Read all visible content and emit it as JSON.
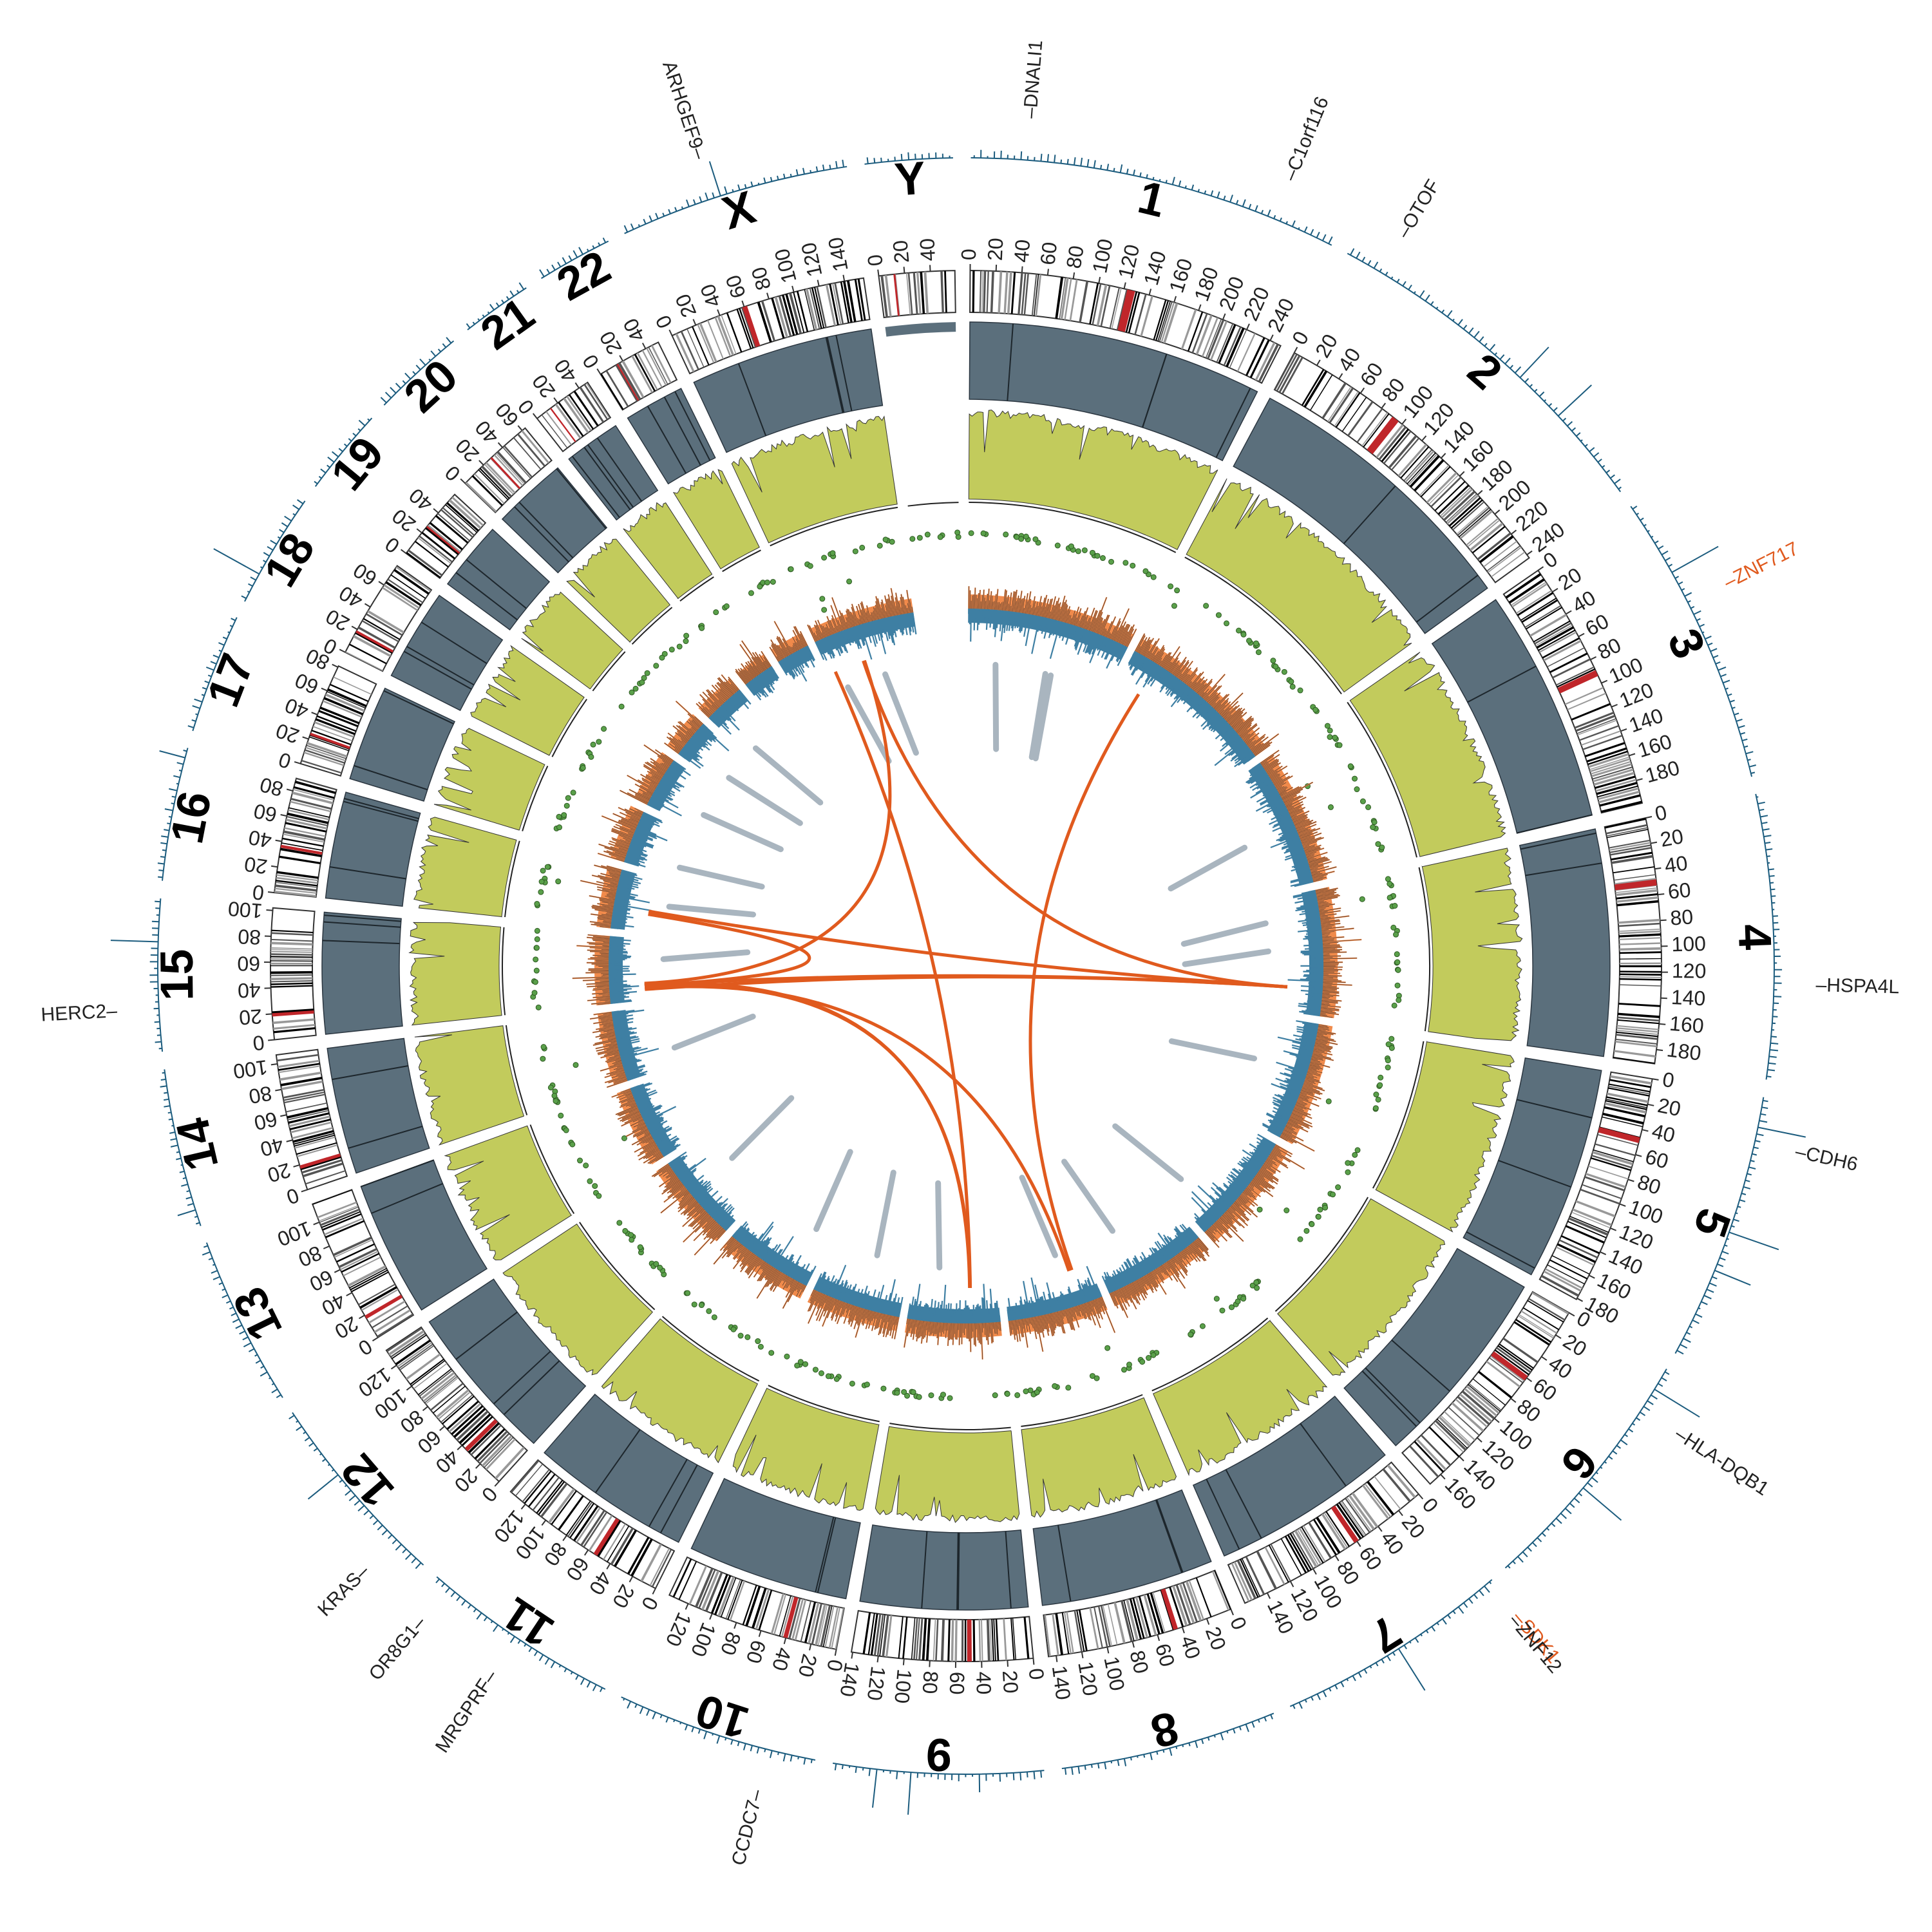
{
  "chart_data": {
    "type": "circos",
    "title": "",
    "chromosomes": [
      {
        "name": "1",
        "length": 249,
        "ticks": [
          0,
          20,
          40,
          60,
          80,
          100,
          120,
          140,
          160,
          180,
          200,
          220,
          240
        ],
        "centromere": 125
      },
      {
        "name": "2",
        "length": 243,
        "ticks": [
          0,
          20,
          40,
          60,
          80,
          100,
          120,
          140,
          160,
          180,
          200,
          220,
          240
        ],
        "centromere": 93
      },
      {
        "name": "3",
        "length": 198,
        "ticks": [
          0,
          20,
          40,
          60,
          80,
          100,
          120,
          140,
          160,
          180
        ],
        "centromere": 91
      },
      {
        "name": "4",
        "length": 191,
        "ticks": [
          0,
          20,
          40,
          60,
          80,
          100,
          120,
          140,
          160,
          180
        ],
        "centromere": 50
      },
      {
        "name": "5",
        "length": 181,
        "ticks": [
          0,
          20,
          40,
          60,
          80,
          100,
          120,
          140,
          160,
          180
        ],
        "centromere": 48
      },
      {
        "name": "6",
        "length": 171,
        "ticks": [
          0,
          20,
          40,
          60,
          80,
          100,
          120,
          140,
          160
        ],
        "centromere": 60
      },
      {
        "name": "7",
        "length": 159,
        "ticks": [
          0,
          20,
          40,
          60,
          80,
          100,
          120,
          140
        ],
        "centromere": 60
      },
      {
        "name": "8",
        "length": 146,
        "ticks": [
          0,
          20,
          40,
          60,
          80,
          100,
          120,
          140
        ],
        "centromere": 45
      },
      {
        "name": "9",
        "length": 141,
        "ticks": [
          0,
          20,
          40,
          60,
          80,
          100,
          120,
          140
        ],
        "centromere": 49
      },
      {
        "name": "10",
        "length": 136,
        "ticks": [
          0,
          20,
          40,
          60,
          80,
          100,
          120
        ],
        "centromere": 40
      },
      {
        "name": "11",
        "length": 135,
        "ticks": [
          0,
          20,
          40,
          60,
          80,
          100,
          120
        ],
        "centromere": 53
      },
      {
        "name": "12",
        "length": 134,
        "ticks": [
          0,
          20,
          40,
          60,
          80,
          100,
          120
        ],
        "centromere": 35
      },
      {
        "name": "13",
        "length": 115,
        "ticks": [
          0,
          20,
          40,
          60,
          80,
          100
        ],
        "centromere": 18
      },
      {
        "name": "14",
        "length": 107,
        "ticks": [
          0,
          20,
          40,
          60,
          80,
          100
        ],
        "centromere": 18
      },
      {
        "name": "15",
        "length": 102,
        "ticks": [
          0,
          20,
          40,
          60,
          80,
          100
        ],
        "centromere": 19
      },
      {
        "name": "16",
        "length": 90,
        "ticks": [
          0,
          20,
          40,
          60,
          80
        ],
        "centromere": 36
      },
      {
        "name": "17",
        "length": 81,
        "ticks": [
          0,
          20,
          40,
          60,
          80
        ],
        "centromere": 24
      },
      {
        "name": "18",
        "length": 78,
        "ticks": [
          0,
          20,
          40,
          60
        ],
        "centromere": 18
      },
      {
        "name": "19",
        "length": 59,
        "ticks": [
          0,
          20,
          40
        ],
        "centromere": 26
      },
      {
        "name": "20",
        "length": 63,
        "ticks": [
          0,
          20,
          40,
          60
        ],
        "centromere": 28
      },
      {
        "name": "21",
        "length": 48,
        "ticks": [
          0,
          20,
          40
        ],
        "centromere": 13
      },
      {
        "name": "22",
        "length": 51,
        "ticks": [
          0,
          20,
          40
        ],
        "centromere": 15
      },
      {
        "name": "X",
        "length": 155,
        "ticks": [
          0,
          20,
          40,
          60,
          80,
          100,
          120,
          140
        ],
        "centromere": 60
      },
      {
        "name": "Y",
        "length": 59,
        "ticks": [
          0,
          20,
          40
        ],
        "centromere": 12
      }
    ],
    "genes": [
      {
        "name": "DNALI1",
        "chr": "1",
        "pos": 38,
        "color": "#222222"
      },
      {
        "name": "C1orf116",
        "chr": "1",
        "pos": 207,
        "color": "#222222"
      },
      {
        "name": "OTOF",
        "chr": "2",
        "pos": 26,
        "color": "#222222"
      },
      {
        "name": "ZNF717",
        "chr": "3",
        "pos": 75,
        "color": "#e05a1e"
      },
      {
        "name": "HSPA4L",
        "chr": "4",
        "pos": 128,
        "color": "#222222"
      },
      {
        "name": "CDH6",
        "chr": "5",
        "pos": 31,
        "color": "#222222"
      },
      {
        "name": "HLA-DQB1",
        "chr": "6",
        "pos": 32,
        "color": "#222222"
      },
      {
        "name": "SDK1",
        "chr": "7",
        "pos": 3,
        "color": "#e05a1e"
      },
      {
        "name": "ZNF12",
        "chr": "7",
        "pos": 6,
        "color": "#222222"
      },
      {
        "name": "CCDC7",
        "chr": "10",
        "pos": 32,
        "color": "#222222"
      },
      {
        "name": "MRGPRF",
        "chr": "11",
        "pos": 68,
        "color": "#222222"
      },
      {
        "name": "OR8G1",
        "chr": "11",
        "pos": 124,
        "color": "#222222"
      },
      {
        "name": "KRAS",
        "chr": "12",
        "pos": 25,
        "color": "#222222"
      },
      {
        "name": "HERC2",
        "chr": "15",
        "pos": 28,
        "color": "#222222"
      },
      {
        "name": "ARHGEF9",
        "chr": "X",
        "pos": 63,
        "color": "#222222"
      }
    ],
    "translocations": [
      {
        "from": [
          "4",
          150
        ],
        "to": [
          "X",
          60
        ]
      },
      {
        "from": [
          "4",
          150
        ],
        "to": [
          "16",
          35
        ]
      },
      {
        "from": [
          "4",
          150
        ],
        "to": [
          "15",
          18
        ]
      },
      {
        "from": [
          "4",
          150
        ],
        "to": [
          "15",
          25
        ]
      },
      {
        "from": [
          "2",
          40
        ],
        "to": [
          "8",
          30
        ]
      },
      {
        "from": [
          "9",
          45
        ],
        "to": [
          "X",
          10
        ]
      },
      {
        "from": [
          "9",
          45
        ],
        "to": [
          "15",
          22
        ]
      },
      {
        "from": [
          "9",
          46
        ],
        "to": [
          "15",
          26
        ]
      },
      {
        "from": [
          "8",
          35
        ],
        "to": [
          "15",
          20
        ]
      },
      {
        "from": [
          "X",
          62
        ],
        "to": [
          "15",
          28
        ]
      },
      {
        "from": [
          "16",
          30
        ],
        "to": [
          "15",
          24
        ]
      }
    ],
    "deletions": [
      {
        "chr": "1",
        "pos": 60
      },
      {
        "chr": "1",
        "pos": 150
      },
      {
        "chr": "1",
        "pos": 160
      },
      {
        "chr": "3",
        "pos": 120
      },
      {
        "chr": "4",
        "pos": 50
      },
      {
        "chr": "4",
        "pos": 100
      },
      {
        "chr": "5",
        "pos": 90
      },
      {
        "chr": "6",
        "pos": 150
      },
      {
        "chr": "7",
        "pos": 120
      },
      {
        "chr": "8",
        "pos": 60
      },
      {
        "chr": "9",
        "pos": 110
      },
      {
        "chr": "10",
        "pos": 70
      },
      {
        "chr": "11",
        "pos": 40
      },
      {
        "chr": "12",
        "pos": 90
      },
      {
        "chr": "14",
        "pos": 40
      },
      {
        "chr": "15",
        "pos": 80
      },
      {
        "chr": "16",
        "pos": 60
      },
      {
        "chr": "17",
        "pos": 30
      },
      {
        "chr": "18",
        "pos": 40
      },
      {
        "chr": "19",
        "pos": 30
      },
      {
        "chr": "20",
        "pos": 30
      },
      {
        "chr": "X",
        "pos": 30
      },
      {
        "chr": "X",
        "pos": 100
      }
    ],
    "legend": "none",
    "grid": false
  },
  "colors": {
    "ideogram_dark": "#000000",
    "ideogram_light": "#ffffff",
    "centromere": "#c0262a",
    "acrocentric": "#9fb2cc",
    "cnv_track": "#5b6f7c",
    "baf_track": "#c2cb5c",
    "snv_points": "#5aa04a",
    "coverage_pos": "#f08a4b",
    "coverage_neg": "#3e7fa3",
    "deletion_chord": "#a9b5bf",
    "translocation_chord": "#e05a1e",
    "outer_signal": "#1c5c7e"
  }
}
